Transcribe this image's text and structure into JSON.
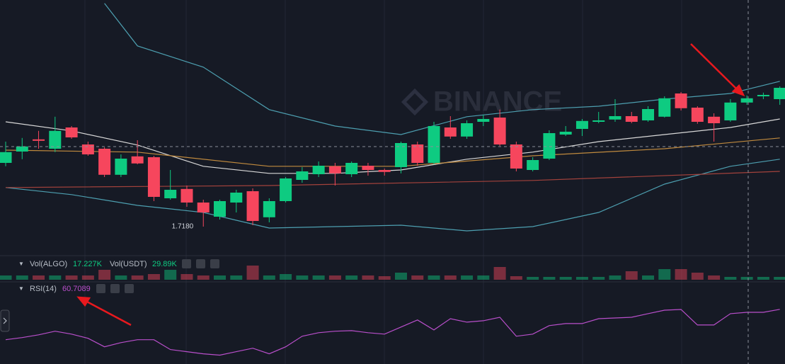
{
  "chart_data": {
    "type": "candlestick",
    "watermark": "BINANCE",
    "low_label": "1.7180",
    "ylim": [
      1.708,
      1.798
    ],
    "up_color": "#0ecb81",
    "down_color": "#f6465d",
    "open": [
      1.7405,
      1.7445,
      1.7488,
      1.7455,
      1.753,
      1.747,
      1.7455,
      1.7363,
      1.7428,
      1.7425,
      1.728,
      1.7313,
      1.7265,
      1.7215,
      1.7265,
      1.7305,
      1.7213,
      1.727,
      1.7345,
      1.7365,
      1.7393,
      1.7365,
      1.7395,
      1.738,
      1.739,
      1.747,
      1.7405,
      1.753,
      1.7498,
      1.755,
      1.7565,
      1.747,
      1.738,
      1.742,
      1.7505,
      1.7525,
      1.755,
      1.7558,
      1.757,
      1.7555,
      1.7568,
      1.765,
      1.76,
      1.7568,
      1.7555,
      1.7618,
      1.764,
      1.763
    ],
    "high": [
      1.748,
      1.7493,
      1.7518,
      1.7568,
      1.7535,
      1.748,
      1.746,
      1.7435,
      1.7485,
      1.743,
      1.738,
      1.7325,
      1.7275,
      1.7275,
      1.731,
      1.7315,
      1.728,
      1.7355,
      1.739,
      1.741,
      1.7405,
      1.741,
      1.7405,
      1.7385,
      1.748,
      1.748,
      1.755,
      1.757,
      1.7555,
      1.7575,
      1.7593,
      1.748,
      1.7425,
      1.752,
      1.7535,
      1.756,
      1.7585,
      1.763,
      1.7585,
      1.7605,
      1.764,
      1.7655,
      1.7605,
      1.758,
      1.763,
      1.7643,
      1.7653,
      1.7675
    ],
    "low": [
      1.7393,
      1.7418,
      1.7455,
      1.7443,
      1.749,
      1.743,
      1.7355,
      1.7355,
      1.74,
      1.727,
      1.7275,
      1.725,
      1.718,
      1.7205,
      1.723,
      1.7185,
      1.7195,
      1.7265,
      1.7335,
      1.7355,
      1.7325,
      1.7355,
      1.736,
      1.736,
      1.7368,
      1.7395,
      1.74,
      1.749,
      1.749,
      1.7535,
      1.7465,
      1.7375,
      1.7375,
      1.7415,
      1.75,
      1.75,
      1.7545,
      1.755,
      1.7545,
      1.755,
      1.7565,
      1.759,
      1.7543,
      1.748,
      1.755,
      1.761,
      1.763,
      1.761
    ],
    "close": [
      1.7443,
      1.7463,
      1.7483,
      1.7518,
      1.7495,
      1.7435,
      1.7363,
      1.742,
      1.7403,
      1.7285,
      1.731,
      1.7265,
      1.723,
      1.727,
      1.73,
      1.72,
      1.727,
      1.735,
      1.7375,
      1.7395,
      1.7368,
      1.7405,
      1.738,
      1.7373,
      1.7475,
      1.7405,
      1.7535,
      1.7498,
      1.7545,
      1.756,
      1.747,
      1.7385,
      1.7415,
      1.751,
      1.7515,
      1.7553,
      1.7555,
      1.757,
      1.755,
      1.7595,
      1.7633,
      1.7598,
      1.755,
      1.7545,
      1.7618,
      1.7633,
      1.7645,
      1.767
    ],
    "overlays": [
      {
        "color": "#4d9fb0",
        "x": [
          6,
          8,
          12,
          16,
          20,
          24,
          28,
          32,
          36,
          40,
          44,
          47
        ],
        "values": [
          1.7968,
          1.7818,
          1.7743,
          1.7593,
          1.7535,
          1.7505,
          1.7568,
          1.7593,
          1.7605,
          1.763,
          1.765,
          1.7693
        ]
      },
      {
        "color": "#4d9fb0",
        "x": [
          0,
          4,
          8,
          12,
          16,
          20,
          24,
          28,
          32,
          36,
          40,
          44,
          47
        ],
        "values": [
          1.7318,
          1.7293,
          1.7255,
          1.723,
          1.7175,
          1.718,
          1.7185,
          1.7165,
          1.718,
          1.723,
          1.733,
          1.7393,
          1.7418
        ]
      },
      {
        "color": "#d8d8d8",
        "x": [
          0,
          4,
          8,
          12,
          16,
          20,
          24,
          28,
          32,
          36,
          40,
          44,
          47
        ],
        "values": [
          1.755,
          1.7518,
          1.7468,
          1.7393,
          1.7368,
          1.7368,
          1.738,
          1.7418,
          1.7443,
          1.748,
          1.7505,
          1.753,
          1.756
        ]
      },
      {
        "color": "#c08a3e",
        "x": [
          0,
          8,
          16,
          24,
          32,
          40,
          47
        ],
        "values": [
          1.745,
          1.7443,
          1.7393,
          1.7393,
          1.743,
          1.7455,
          1.7493
        ]
      },
      {
        "color": "#a3423c",
        "x": [
          0,
          16,
          32,
          47
        ],
        "values": [
          1.7318,
          1.7325,
          1.7343,
          1.7375
        ]
      }
    ],
    "volume": {
      "legend": [
        {
          "name": "Vol(ALGO)",
          "value_label": "17.227K"
        },
        {
          "name": "Vol(USDT)",
          "value_label": "29.89K"
        }
      ],
      "ylim": [
        0,
        137.6
      ],
      "values": [
        25.8,
        25.8,
        25.8,
        25.8,
        25.8,
        25.8,
        60.2,
        25.8,
        25.8,
        34.4,
        60.2,
        34.4,
        25.8,
        25.8,
        25.8,
        86,
        25.8,
        34.4,
        25.8,
        25.8,
        25.8,
        25.8,
        25.8,
        21.5,
        43,
        25.8,
        25.8,
        25.8,
        25.8,
        25.8,
        77.4,
        21.5,
        17.2,
        17.2,
        17.2,
        17.2,
        17.2,
        25.8,
        51.6,
        25.8,
        64.5,
        64.5,
        43,
        25.8,
        17.2,
        17.2,
        17.2,
        17.227
      ]
    },
    "rsi": {
      "name": "RSI(14)",
      "value_label": "60.7089",
      "color": "#b94fcb",
      "ylim": [
        15,
        82.5
      ],
      "values": [
        35.3,
        37.1,
        39.4,
        42.4,
        40,
        36.5,
        29.4,
        32.9,
        35.3,
        35.3,
        27.1,
        25.3,
        23.5,
        22.4,
        25.3,
        28.2,
        23.5,
        29.4,
        38.2,
        41.2,
        42.4,
        42.9,
        41.2,
        40,
        45.9,
        51.8,
        43.5,
        52.9,
        50,
        51.2,
        54.1,
        38.2,
        40,
        47.1,
        48.8,
        48.8,
        52.9,
        53.5,
        54.1,
        57.1,
        60,
        60.6,
        47.6,
        47.6,
        57.1,
        58.2,
        58.2,
        60.7089
      ]
    }
  }
}
